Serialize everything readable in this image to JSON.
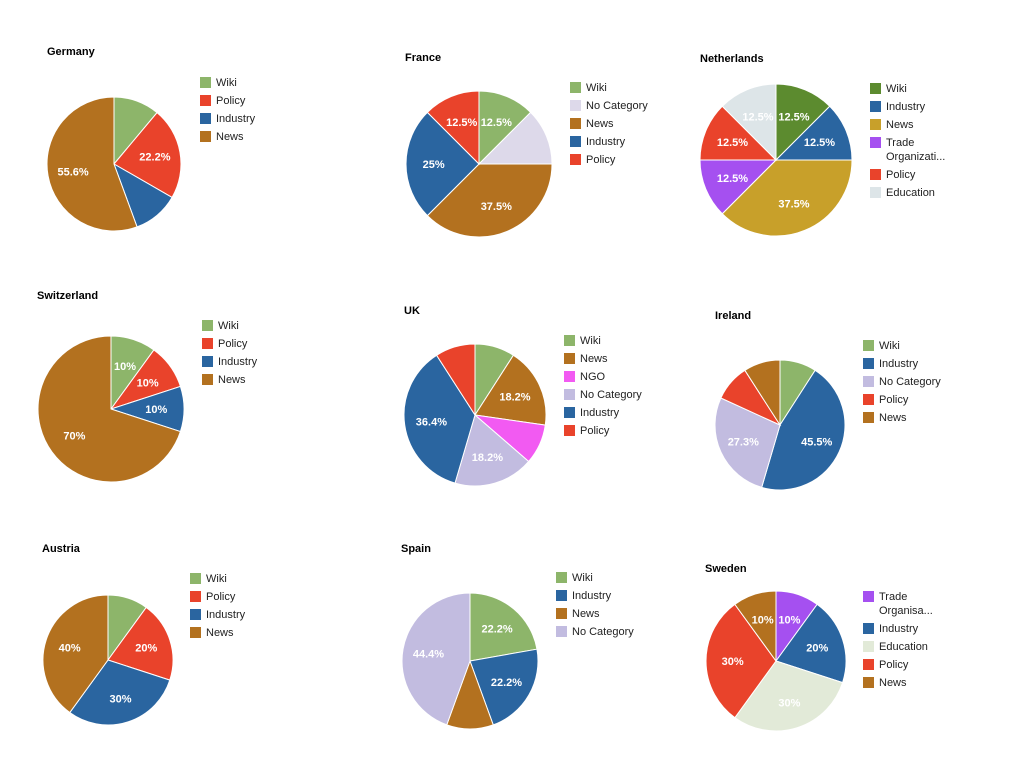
{
  "chart_data": [
    {
      "type": "pie",
      "title": "Germany",
      "slices": [
        {
          "label": "Wiki",
          "value": 11.1,
          "color": "#8db56a",
          "data_label": ""
        },
        {
          "label": "Policy",
          "value": 22.2,
          "color": "#e9432b",
          "data_label": "22.2%"
        },
        {
          "label": "Industry",
          "value": 11.1,
          "color": "#2a65a0",
          "data_label": ""
        },
        {
          "label": "News",
          "value": 55.6,
          "color": "#b3711f",
          "data_label": "55.6%"
        }
      ],
      "legend": [
        "Wiki",
        "Policy",
        "Industry",
        "News"
      ]
    },
    {
      "type": "pie",
      "title": "France",
      "slices": [
        {
          "label": "Wiki",
          "value": 12.5,
          "color": "#8db56a",
          "data_label": "12.5%"
        },
        {
          "label": "No Category",
          "value": 12.5,
          "color": "#ddd9ea",
          "data_label": ""
        },
        {
          "label": "News",
          "value": 37.5,
          "color": "#b3711f",
          "data_label": "37.5%"
        },
        {
          "label": "Industry",
          "value": 25,
          "color": "#2a65a0",
          "data_label": "25%"
        },
        {
          "label": "Policy",
          "value": 12.5,
          "color": "#e9432b",
          "data_label": "12.5%"
        }
      ],
      "legend": [
        "Wiki",
        "No Category",
        "News",
        "Industry",
        "Policy"
      ]
    },
    {
      "type": "pie",
      "title": "Netherlands",
      "slices": [
        {
          "label": "Wiki",
          "value": 12.5,
          "color": "#5c8b2f",
          "data_label": "12.5%"
        },
        {
          "label": "Industry",
          "value": 12.5,
          "color": "#2a65a0",
          "data_label": "12.5%"
        },
        {
          "label": "News",
          "value": 37.5,
          "color": "#c8a02a",
          "data_label": "37.5%"
        },
        {
          "label": "Trade Organizati...",
          "value": 12.5,
          "color": "#a550f0",
          "data_label": "12.5%"
        },
        {
          "label": "Policy",
          "value": 12.5,
          "color": "#e9432b",
          "data_label": "12.5%"
        },
        {
          "label": "Education",
          "value": 12.5,
          "color": "#dde5e8",
          "data_label": "12.5%"
        }
      ],
      "legend": [
        "Wiki",
        "Industry",
        "News",
        "Trade Organizati...",
        "Policy",
        "Education"
      ]
    },
    {
      "type": "pie",
      "title": "Switzerland",
      "slices": [
        {
          "label": "Wiki",
          "value": 10,
          "color": "#8db56a",
          "data_label": "10%"
        },
        {
          "label": "Policy",
          "value": 10,
          "color": "#e9432b",
          "data_label": "10%"
        },
        {
          "label": "Industry",
          "value": 10,
          "color": "#2a65a0",
          "data_label": "10%"
        },
        {
          "label": "News",
          "value": 70,
          "color": "#b3711f",
          "data_label": "70%"
        }
      ],
      "legend": [
        "Wiki",
        "Policy",
        "Industry",
        "News"
      ]
    },
    {
      "type": "pie",
      "title": "UK",
      "slices": [
        {
          "label": "Wiki",
          "value": 9.1,
          "color": "#8db56a",
          "data_label": ""
        },
        {
          "label": "News",
          "value": 18.2,
          "color": "#b3711f",
          "data_label": "18.2%"
        },
        {
          "label": "NGO",
          "value": 9.1,
          "color": "#f25af2",
          "data_label": ""
        },
        {
          "label": "No Category",
          "value": 18.2,
          "color": "#c2bce0",
          "data_label": "18.2%"
        },
        {
          "label": "Industry",
          "value": 36.4,
          "color": "#2a65a0",
          "data_label": "36.4%"
        },
        {
          "label": "Policy",
          "value": 9.1,
          "color": "#e9432b",
          "data_label": ""
        }
      ],
      "legend": [
        "Wiki",
        "News",
        "NGO",
        "No Category",
        "Industry",
        "Policy"
      ]
    },
    {
      "type": "pie",
      "title": "Ireland",
      "slices": [
        {
          "label": "Wiki",
          "value": 9.1,
          "color": "#8db56a",
          "data_label": ""
        },
        {
          "label": "Industry",
          "value": 45.5,
          "color": "#2a65a0",
          "data_label": "45.5%"
        },
        {
          "label": "No Category",
          "value": 27.3,
          "color": "#c2bce0",
          "data_label": "27.3%"
        },
        {
          "label": "Policy",
          "value": 9.1,
          "color": "#e9432b",
          "data_label": ""
        },
        {
          "label": "News",
          "value": 9.1,
          "color": "#b3711f",
          "data_label": ""
        }
      ],
      "legend": [
        "Wiki",
        "Industry",
        "No Category",
        "Policy",
        "News"
      ]
    },
    {
      "type": "pie",
      "title": "Austria",
      "slices": [
        {
          "label": "Wiki",
          "value": 10,
          "color": "#8db56a",
          "data_label": ""
        },
        {
          "label": "Policy",
          "value": 20,
          "color": "#e9432b",
          "data_label": "20%"
        },
        {
          "label": "Industry",
          "value": 30,
          "color": "#2a65a0",
          "data_label": "30%"
        },
        {
          "label": "News",
          "value": 40,
          "color": "#b3711f",
          "data_label": "40%"
        }
      ],
      "legend": [
        "Wiki",
        "Policy",
        "Industry",
        "News"
      ]
    },
    {
      "type": "pie",
      "title": "Spain",
      "slices": [
        {
          "label": "Wiki",
          "value": 22.2,
          "color": "#8db56a",
          "data_label": "22.2%"
        },
        {
          "label": "Industry",
          "value": 22.2,
          "color": "#2a65a0",
          "data_label": "22.2%"
        },
        {
          "label": "News",
          "value": 11.1,
          "color": "#b3711f",
          "data_label": ""
        },
        {
          "label": "No Category",
          "value": 44.4,
          "color": "#c2bce0",
          "data_label": "44.4%"
        }
      ],
      "legend": [
        "Wiki",
        "Industry",
        "News",
        "No Category"
      ]
    },
    {
      "type": "pie",
      "title": "Sweden",
      "slices": [
        {
          "label": "Trade Organisa...",
          "value": 10,
          "color": "#a550f0",
          "data_label": "10%"
        },
        {
          "label": "Industry",
          "value": 20,
          "color": "#2a65a0",
          "data_label": "20%"
        },
        {
          "label": "Education",
          "value": 30,
          "color": "#e2ead8",
          "data_label": "30%"
        },
        {
          "label": "Policy",
          "value": 30,
          "color": "#e9432b",
          "data_label": "30%"
        },
        {
          "label": "News",
          "value": 10,
          "color": "#b3711f",
          "data_label": "10%"
        }
      ],
      "legend": [
        "Trade Organisa...",
        "Industry",
        "Education",
        "Policy",
        "News"
      ]
    }
  ]
}
